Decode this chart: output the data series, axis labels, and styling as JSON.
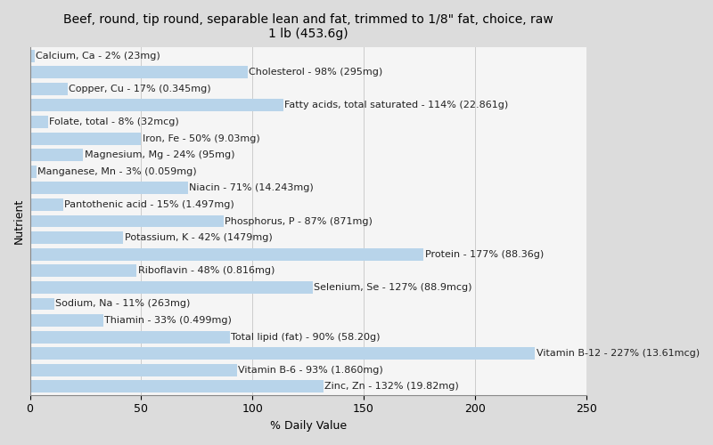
{
  "title": "Beef, round, tip round, separable lean and fat, trimmed to 1/8\" fat, choice, raw\n1 lb (453.6g)",
  "xlabel": "% Daily Value",
  "ylabel": "Nutrient",
  "background_color": "#dcdcdc",
  "plot_bg_color": "#f5f5f5",
  "bar_color": "#b8d4ea",
  "nutrients": [
    {
      "label": "Calcium, Ca - 2% (23mg)",
      "value": 2
    },
    {
      "label": "Cholesterol - 98% (295mg)",
      "value": 98
    },
    {
      "label": "Copper, Cu - 17% (0.345mg)",
      "value": 17
    },
    {
      "label": "Fatty acids, total saturated - 114% (22.861g)",
      "value": 114
    },
    {
      "label": "Folate, total - 8% (32mcg)",
      "value": 8
    },
    {
      "label": "Iron, Fe - 50% (9.03mg)",
      "value": 50
    },
    {
      "label": "Magnesium, Mg - 24% (95mg)",
      "value": 24
    },
    {
      "label": "Manganese, Mn - 3% (0.059mg)",
      "value": 3
    },
    {
      "label": "Niacin - 71% (14.243mg)",
      "value": 71
    },
    {
      "label": "Pantothenic acid - 15% (1.497mg)",
      "value": 15
    },
    {
      "label": "Phosphorus, P - 87% (871mg)",
      "value": 87
    },
    {
      "label": "Potassium, K - 42% (1479mg)",
      "value": 42
    },
    {
      "label": "Protein - 177% (88.36g)",
      "value": 177
    },
    {
      "label": "Riboflavin - 48% (0.816mg)",
      "value": 48
    },
    {
      "label": "Selenium, Se - 127% (88.9mcg)",
      "value": 127
    },
    {
      "label": "Sodium, Na - 11% (263mg)",
      "value": 11
    },
    {
      "label": "Thiamin - 33% (0.499mg)",
      "value": 33
    },
    {
      "label": "Total lipid (fat) - 90% (58.20g)",
      "value": 90
    },
    {
      "label": "Vitamin B-12 - 227% (13.61mcg)",
      "value": 227
    },
    {
      "label": "Vitamin B-6 - 93% (1.860mg)",
      "value": 93
    },
    {
      "label": "Zinc, Zn - 132% (19.82mg)",
      "value": 132
    }
  ],
  "xlim": [
    0,
    250
  ],
  "xticks": [
    0,
    50,
    100,
    150,
    200,
    250
  ],
  "title_fontsize": 10,
  "axis_label_fontsize": 9,
  "tick_fontsize": 9,
  "bar_label_fontsize": 8,
  "grid_color": "#cccccc",
  "text_color": "#222222",
  "bar_height": 0.75
}
